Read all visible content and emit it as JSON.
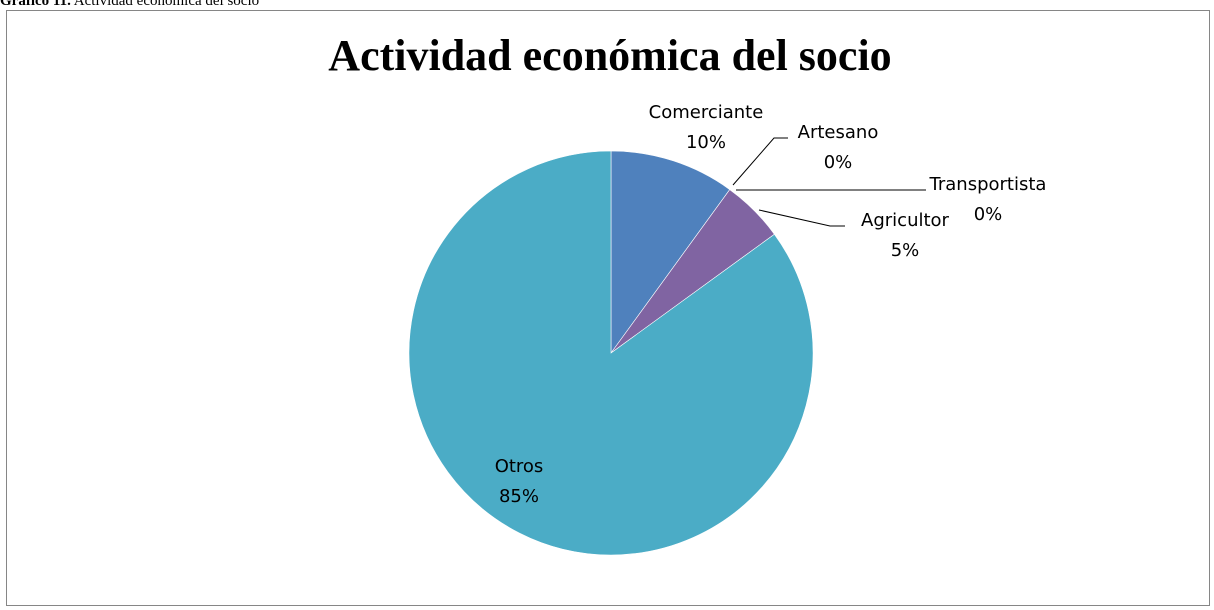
{
  "caption": {
    "prefix": "Gráfico 11.",
    "text": "Actividad económica del socio"
  },
  "chart_data": {
    "type": "pie",
    "title": "Actividad económica del socio",
    "slices": [
      {
        "name": "Comerciante",
        "value": 10,
        "label": "10%",
        "color": "#4f81bd"
      },
      {
        "name": "Artesano",
        "value": 0,
        "label": "0%",
        "color": "#c0504d"
      },
      {
        "name": "Transportista",
        "value": 0,
        "label": "0%",
        "color": "#9bbb59"
      },
      {
        "name": "Agricultor",
        "value": 5,
        "label": "5%",
        "color": "#8064a2"
      },
      {
        "name": "Otros",
        "value": 85,
        "label": "85%",
        "color": "#4bacc6"
      }
    ],
    "legend": "none"
  }
}
